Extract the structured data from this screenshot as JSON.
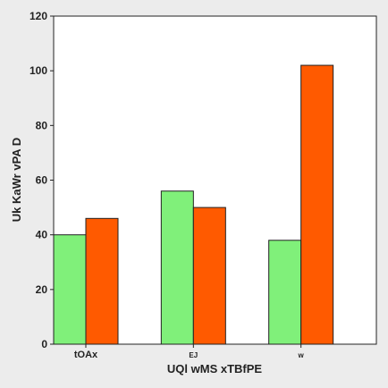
{
  "chart_data": {
    "type": "bar",
    "title": "",
    "xlabel": "UQl wMS xTBfPE",
    "ylabel": "Uk KaWr vPA  D",
    "categories": [
      "tOAx",
      "EJ",
      "w"
    ],
    "series": [
      {
        "values": [
          40,
          56,
          38
        ],
        "color": "#80f07a"
      },
      {
        "values": [
          46,
          50,
          102
        ],
        "color": "#ff5a00"
      }
    ],
    "ylim": [
      0,
      120
    ],
    "yticks": [
      0,
      20,
      40,
      60,
      80,
      100,
      120
    ],
    "grid": false,
    "legend": "none"
  }
}
